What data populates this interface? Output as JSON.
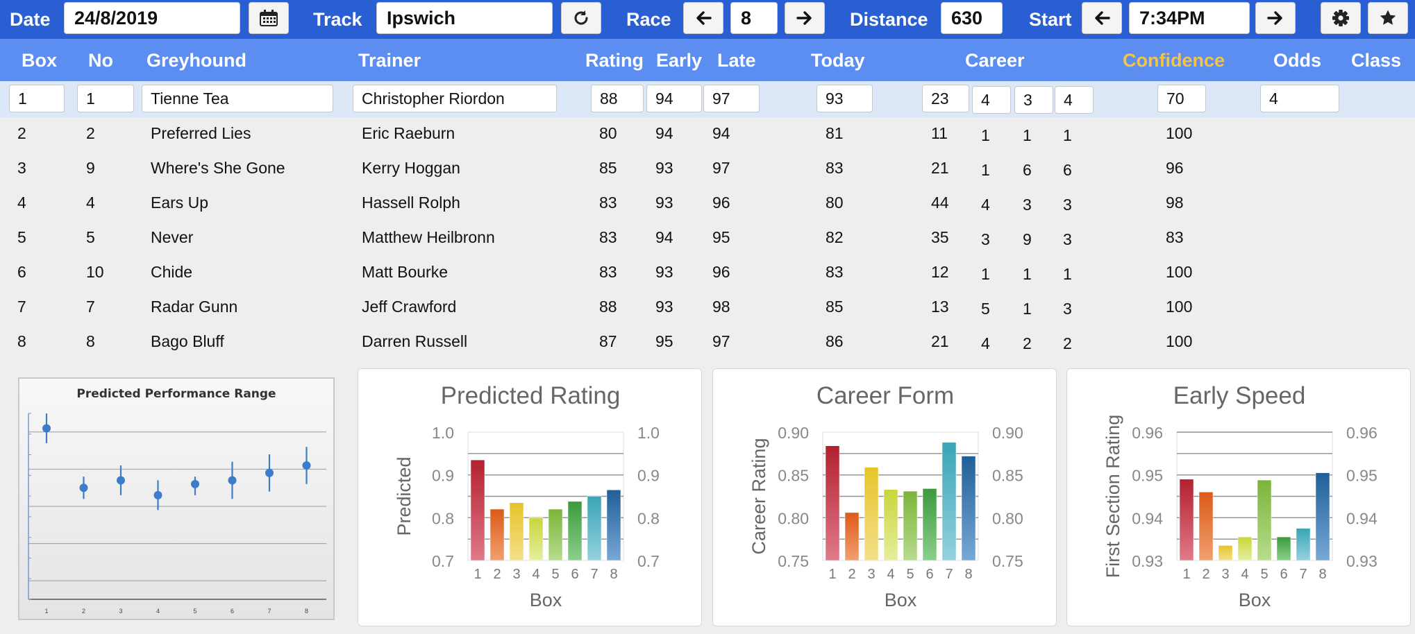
{
  "toolbar": {
    "date_label": "Date",
    "date_value": "24/8/2019",
    "track_label": "Track",
    "track_value": "Ipswich",
    "race_label": "Race",
    "race_value": "8",
    "distance_label": "Distance",
    "distance_value": "630",
    "start_label": "Start",
    "start_value": "7:34PM",
    "icons": [
      "calendar-icon",
      "refresh-icon",
      "arrow-left-icon",
      "arrow-right-icon",
      "gear-icon",
      "star-icon"
    ]
  },
  "colors": {
    "toolbar_bg": "#2a5fd4",
    "header_bg": "#5b8ef0",
    "confidence_header": "#f3c34a",
    "selected_row_bg": "#dce7f8"
  },
  "table": {
    "headers": {
      "box": "Box",
      "no": "No",
      "greyhound": "Greyhound",
      "trainer": "Trainer",
      "rating": "Rating",
      "early": "Early",
      "late": "Late",
      "today": "Today",
      "career": "Career",
      "confidence": "Confidence",
      "odds": "Odds",
      "class": "Class"
    },
    "rows": [
      {
        "box": "1",
        "no": "1",
        "greyhound": "Tienne Tea",
        "trainer": "Christopher Riordon",
        "rating": "88",
        "early": "94",
        "late": "97",
        "today": "93",
        "career": [
          "23",
          "4",
          "3",
          "4"
        ],
        "confidence": "70",
        "odds": "4"
      },
      {
        "box": "2",
        "no": "2",
        "greyhound": "Preferred Lies",
        "trainer": "Eric Raeburn",
        "rating": "80",
        "early": "94",
        "late": "94",
        "today": "81",
        "career": [
          "11",
          "1",
          "1",
          "1"
        ],
        "confidence": "100",
        "odds": ""
      },
      {
        "box": "3",
        "no": "9",
        "greyhound": "Where's She Gone",
        "trainer": "Kerry Hoggan",
        "rating": "85",
        "early": "93",
        "late": "97",
        "today": "83",
        "career": [
          "21",
          "1",
          "6",
          "6"
        ],
        "confidence": "96",
        "odds": ""
      },
      {
        "box": "4",
        "no": "4",
        "greyhound": "Ears Up",
        "trainer": "Hassell Rolph",
        "rating": "83",
        "early": "93",
        "late": "96",
        "today": "80",
        "career": [
          "44",
          "4",
          "3",
          "3"
        ],
        "confidence": "98",
        "odds": ""
      },
      {
        "box": "5",
        "no": "5",
        "greyhound": "Never",
        "trainer": "Matthew Heilbronn",
        "rating": "83",
        "early": "94",
        "late": "95",
        "today": "82",
        "career": [
          "35",
          "3",
          "9",
          "3"
        ],
        "confidence": "83",
        "odds": ""
      },
      {
        "box": "6",
        "no": "10",
        "greyhound": "Chide",
        "trainer": "Matt Bourke",
        "rating": "83",
        "early": "93",
        "late": "96",
        "today": "83",
        "career": [
          "12",
          "1",
          "1",
          "1"
        ],
        "confidence": "100",
        "odds": ""
      },
      {
        "box": "7",
        "no": "7",
        "greyhound": "Radar Gunn",
        "trainer": "Jeff Crawford",
        "rating": "88",
        "early": "93",
        "late": "98",
        "today": "85",
        "career": [
          "13",
          "5",
          "1",
          "3"
        ],
        "confidence": "100",
        "odds": ""
      },
      {
        "box": "8",
        "no": "8",
        "greyhound": "Bago Bluff",
        "trainer": "Darren Russell",
        "rating": "87",
        "early": "95",
        "late": "97",
        "today": "86",
        "career": [
          "21",
          "4",
          "2",
          "2"
        ],
        "confidence": "100",
        "odds": ""
      }
    ]
  },
  "chart_data": [
    {
      "type": "scatter",
      "title": "Predicted Performance Range",
      "categories": [
        "1",
        "2",
        "3",
        "4",
        "5",
        "6",
        "7",
        "8"
      ],
      "values": [
        0.93,
        0.85,
        0.86,
        0.84,
        0.855,
        0.86,
        0.87,
        0.88
      ],
      "error_low": [
        0.91,
        0.835,
        0.84,
        0.82,
        0.84,
        0.835,
        0.845,
        0.855
      ],
      "error_high": [
        0.95,
        0.865,
        0.88,
        0.86,
        0.865,
        0.885,
        0.895,
        0.905
      ],
      "ylim": [
        0.7,
        0.95
      ],
      "grid": true,
      "marker_color": "#3d7cc9"
    },
    {
      "type": "bar",
      "title": "Predicted Rating",
      "xlabel": "Box",
      "ylabel": "Predicted",
      "categories": [
        "1",
        "2",
        "3",
        "4",
        "5",
        "6",
        "7",
        "8"
      ],
      "values": [
        0.935,
        0.82,
        0.835,
        0.8,
        0.82,
        0.838,
        0.85,
        0.865
      ],
      "ylim": [
        0.7,
        1.0
      ],
      "yticks": [
        "0.7",
        "0.8",
        "0.9",
        "1.0"
      ],
      "grid": true
    },
    {
      "type": "bar",
      "title": "Career Form",
      "xlabel": "Box",
      "ylabel": "Career Rating",
      "categories": [
        "1",
        "2",
        "3",
        "4",
        "5",
        "6",
        "7",
        "8"
      ],
      "values": [
        0.884,
        0.806,
        0.859,
        0.833,
        0.831,
        0.834,
        0.888,
        0.872
      ],
      "ylim": [
        0.75,
        0.9
      ],
      "yticks": [
        "0.75",
        "0.80",
        "0.85",
        "0.90"
      ],
      "grid": true
    },
    {
      "type": "bar",
      "title": "Early Speed",
      "xlabel": "Box",
      "ylabel": "First Section Rating",
      "categories": [
        "1",
        "2",
        "3",
        "4",
        "5",
        "6",
        "7",
        "8"
      ],
      "values": [
        0.949,
        0.946,
        0.9335,
        0.9355,
        0.9488,
        0.9355,
        0.9375,
        0.9505
      ],
      "ylim": [
        0.93,
        0.96
      ],
      "yticks": [
        "0.93",
        "0.94",
        "0.95",
        "0.96"
      ],
      "grid": true
    }
  ]
}
